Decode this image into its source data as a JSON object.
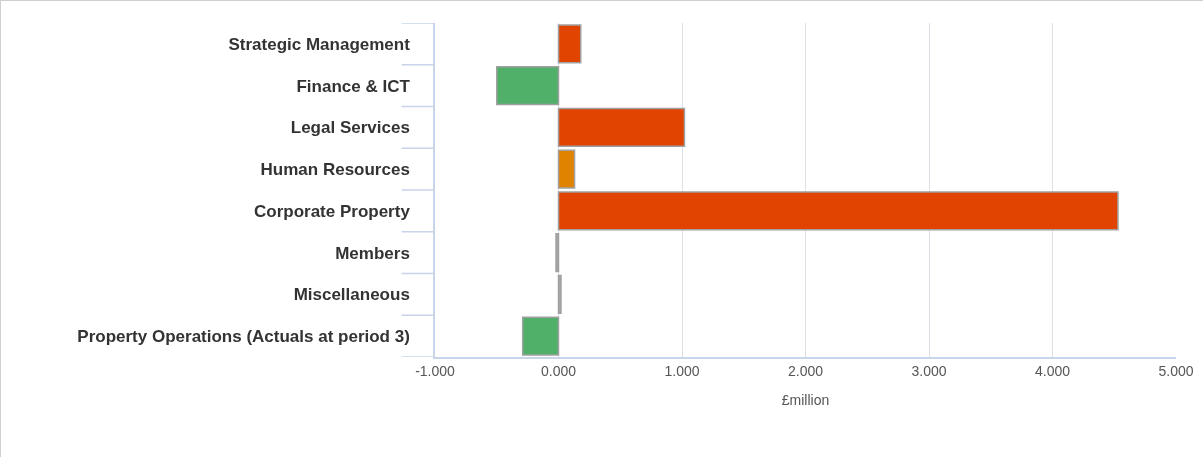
{
  "chart_data": {
    "type": "bar",
    "orientation": "horizontal",
    "categories": [
      "Strategic Management",
      "Finance & ICT",
      "Legal Services",
      "Human Resources",
      "Corporate Property",
      "Members",
      "Miscellaneous",
      "Property Operations (Actuals at period 3)"
    ],
    "values": [
      0.18,
      -0.5,
      1.02,
      0.13,
      4.53,
      -0.02,
      0.02,
      -0.29
    ],
    "colors": [
      "#e04400",
      "#50b06a",
      "#e04400",
      "#e08300",
      "#e04400",
      "#a6a6a6",
      "#a6a6a6",
      "#50b06a"
    ],
    "xlabel": "£million",
    "xlim": [
      -1,
      5
    ],
    "xticks": [
      {
        "value": -1,
        "label": "-1.000"
      },
      {
        "value": 0,
        "label": "0.000"
      },
      {
        "value": 1,
        "label": "1.000"
      },
      {
        "value": 2,
        "label": "2.000"
      },
      {
        "value": 3,
        "label": "3.000"
      },
      {
        "value": 4,
        "label": "4.000"
      },
      {
        "value": 5,
        "label": "5.000"
      }
    ],
    "grid": "x"
  }
}
